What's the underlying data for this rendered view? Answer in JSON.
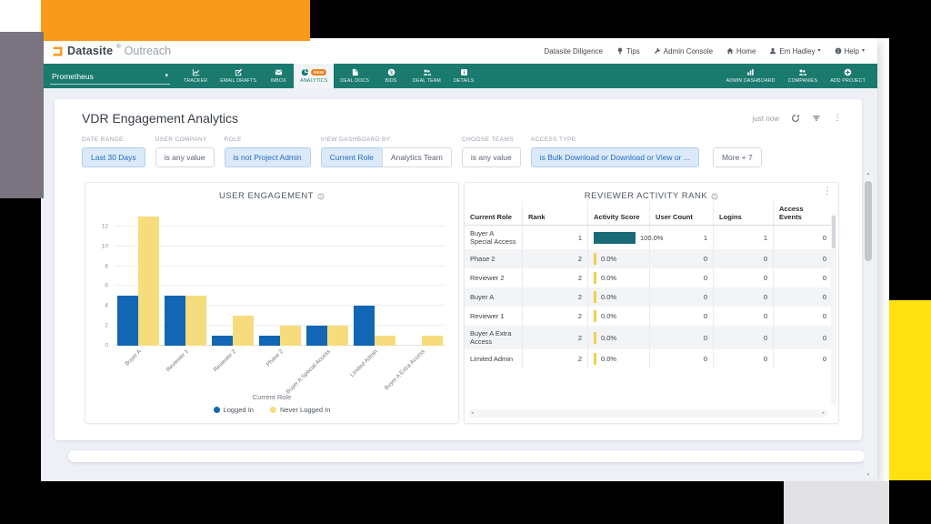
{
  "colors": {
    "brand_teal": "#1a7a6e",
    "brand_orange": "#f89b1b",
    "badge_orange": "#ef7f1a",
    "bar_blue": "#1266b3",
    "bar_yellow": "#f6dc7d",
    "score_bar_teal": "#196b77",
    "score_bar_yellow": "#f3cf4e",
    "chip_active_bg": "#dce9f8",
    "chip_active_text": "#1e6ec2",
    "decor_yellow": "#ffe112",
    "decor_gray": "#7a7380",
    "decor_light_gray": "#e2e2e4",
    "decor_black": "#000000"
  },
  "header": {
    "brand": "Datasite",
    "registered": "®",
    "product": "Outreach",
    "menu": [
      {
        "label": "Datasite Diligence",
        "icon": ""
      },
      {
        "label": "Tips",
        "icon": "bulb"
      },
      {
        "label": "Admin Console",
        "icon": "wrench"
      },
      {
        "label": "Home",
        "icon": "home"
      },
      {
        "label": "Em Hadley",
        "icon": "user",
        "caret": true
      },
      {
        "label": "Help",
        "icon": "info",
        "caret": true
      }
    ]
  },
  "nav": {
    "project": "Prometheus",
    "tabs": [
      {
        "label": "TRACKER",
        "icon": "tracker"
      },
      {
        "label": "EMAIL DRAFTS",
        "icon": "compose"
      },
      {
        "label": "INBOX",
        "icon": "envelope"
      },
      {
        "label": "ANALYTICS",
        "icon": "pie",
        "active": true,
        "badge": "NEW"
      },
      {
        "label": "DEAL DOCS",
        "icon": "doc"
      },
      {
        "label": "BIDS",
        "icon": "dollar"
      },
      {
        "label": "DEAL TEAM",
        "icon": "people"
      },
      {
        "label": "DETAILS",
        "icon": "infosq"
      }
    ],
    "right_tabs": [
      {
        "label": "ADMIN DASHBOARD",
        "icon": "barchart"
      },
      {
        "label": "COMPANIES",
        "icon": "people"
      },
      {
        "label": "ADD PROJECT",
        "icon": "plus"
      }
    ]
  },
  "panel": {
    "title": "VDR Engagement Analytics",
    "updated": "just now",
    "more_label": "More + 7",
    "filters": [
      {
        "label": "DATE RANGE",
        "chips": [
          {
            "text": "Last 30 Days",
            "style": "active"
          }
        ]
      },
      {
        "label": "USER COMPANY",
        "chips": [
          {
            "text": "is any value",
            "style": "plain"
          }
        ]
      },
      {
        "label": "ROLE",
        "chips": [
          {
            "text": "is not Project Admin",
            "style": "active"
          }
        ]
      },
      {
        "label": "VIEW DASHBOARD BY:",
        "chips": [
          {
            "text": "Current Role",
            "style": "active"
          },
          {
            "text": "Analytics Team",
            "style": "plain"
          }
        ]
      },
      {
        "label": "CHOOSE TEAMS",
        "chips": [
          {
            "text": "is any value",
            "style": "plain"
          }
        ]
      },
      {
        "label": "ACCESS TYPE",
        "chips": [
          {
            "text": "is Bulk Download or Download or View or ...",
            "style": "active"
          }
        ]
      }
    ]
  },
  "chart_data": {
    "type": "bar",
    "title": "USER ENGAGEMENT",
    "categories": [
      "Buyer A",
      "Reviewer 1",
      "Reviewer 2",
      "Phase 2",
      "Buyer A Special Access",
      "Limited Admin",
      "Buyer A Extra Access"
    ],
    "series": [
      {
        "name": "Logged In",
        "color": "#1266b3",
        "values": [
          5,
          5,
          1,
          1,
          2,
          4,
          0
        ]
      },
      {
        "name": "Never Logged In",
        "color": "#f6dc7d",
        "values": [
          13,
          5,
          3,
          2,
          2,
          1,
          1
        ]
      }
    ],
    "xlabel": "Current Role",
    "ylabel": "",
    "yticks": [
      0,
      2,
      4,
      6,
      8,
      10,
      12
    ],
    "ylim": [
      0,
      14
    ],
    "grid": true,
    "legend_position": "bottom"
  },
  "table": {
    "title": "REVIEWER ACTIVITY RANK",
    "columns": [
      "Current Role",
      "Rank",
      "Activity Score",
      "User Count",
      "Logins",
      "Access Events"
    ],
    "rows": [
      {
        "role": "Buyer A Special Access",
        "rank": 1,
        "score_label": "100.0%",
        "score_pct": 100,
        "users": 1,
        "logins": 1,
        "events": 0
      },
      {
        "role": "Phase 2",
        "rank": 2,
        "score_label": "0.0%",
        "score_pct": 0,
        "users": 0,
        "logins": 0,
        "events": 0
      },
      {
        "role": "Reviewer 2",
        "rank": 2,
        "score_label": "0.0%",
        "score_pct": 0,
        "users": 0,
        "logins": 0,
        "events": 0
      },
      {
        "role": "Buyer A",
        "rank": 2,
        "score_label": "0.0%",
        "score_pct": 0,
        "users": 0,
        "logins": 0,
        "events": 0
      },
      {
        "role": "Reviewer 1",
        "rank": 2,
        "score_label": "0.0%",
        "score_pct": 0,
        "users": 0,
        "logins": 0,
        "events": 0
      },
      {
        "role": "Buyer A Extra Access",
        "rank": 2,
        "score_label": "0.0%",
        "score_pct": 0,
        "users": 0,
        "logins": 0,
        "events": 0
      },
      {
        "role": "Limited Admin",
        "rank": 2,
        "score_label": "0.0%",
        "score_pct": 0,
        "users": 0,
        "logins": 0,
        "events": 0
      }
    ]
  }
}
